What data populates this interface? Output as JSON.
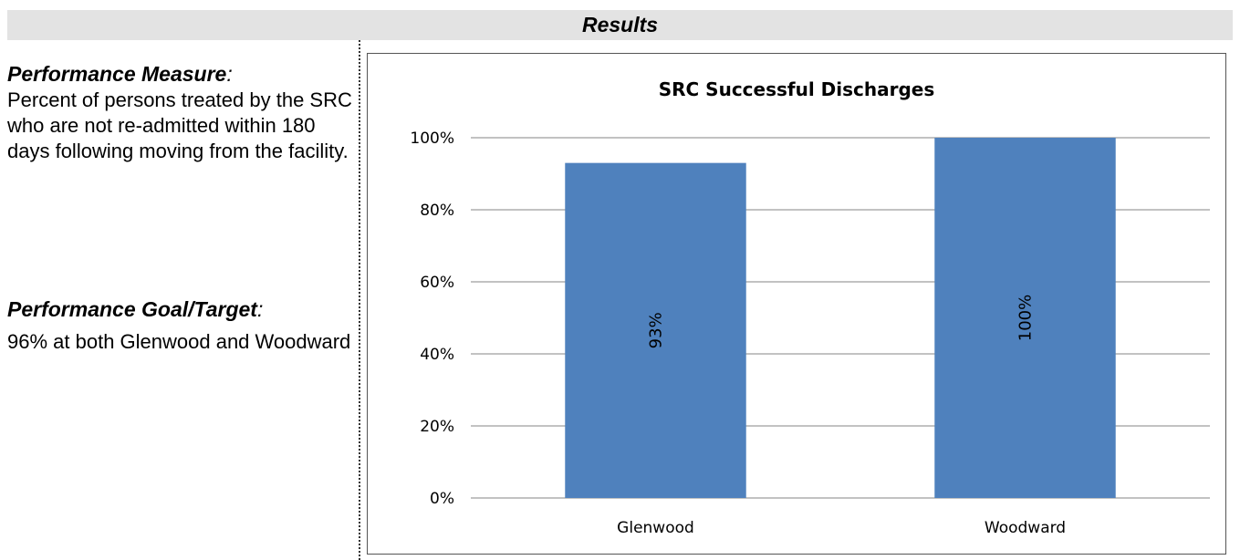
{
  "header": {
    "title": "Results"
  },
  "left": {
    "measure_heading": "Performance Measure",
    "measure_heading_suffix": ":",
    "measure_text": "Percent of persons treated by the SRC who are not re-admitted within 180 days following moving from the facility.",
    "goal_heading": "Performance Goal/Target",
    "goal_heading_suffix": ":",
    "goal_text": "96% at both Glenwood and Woodward"
  },
  "chart_data": {
    "type": "bar",
    "title": "SRC Successful Discharges",
    "categories": [
      "Glenwood",
      "Woodward"
    ],
    "values": [
      93,
      100
    ],
    "data_labels": [
      "93%",
      "100%"
    ],
    "ylim": [
      0,
      100
    ],
    "yticks": [
      0,
      20,
      40,
      60,
      80,
      100
    ],
    "ytick_labels": [
      "0%",
      "20%",
      "40%",
      "60%",
      "80%",
      "100%"
    ],
    "xlabel": "",
    "ylabel": "",
    "grid": true,
    "legend": "none",
    "bar_color": "#4f81bd"
  }
}
